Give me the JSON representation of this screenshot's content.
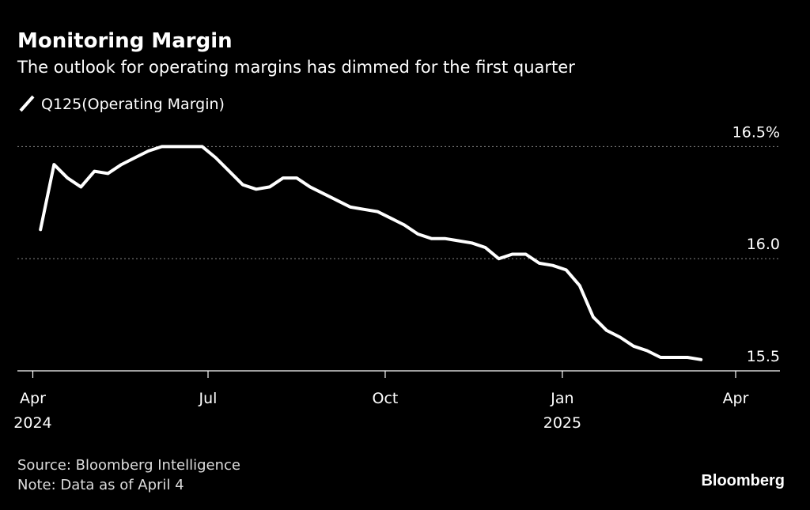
{
  "chart_data": {
    "type": "line",
    "title": "Monitoring Margin",
    "subtitle": "The outlook for operating margins has dimmed for the first quarter",
    "x": [
      "2024-04-05",
      "2024-04-12",
      "2024-04-19",
      "2024-04-26",
      "2024-05-03",
      "2024-05-10",
      "2024-05-17",
      "2024-05-24",
      "2024-05-31",
      "2024-06-07",
      "2024-06-14",
      "2024-06-21",
      "2024-06-28",
      "2024-07-05",
      "2024-07-12",
      "2024-07-19",
      "2024-07-26",
      "2024-08-02",
      "2024-08-09",
      "2024-08-16",
      "2024-08-23",
      "2024-08-30",
      "2024-09-06",
      "2024-09-13",
      "2024-09-20",
      "2024-09-27",
      "2024-10-04",
      "2024-10-11",
      "2024-10-18",
      "2024-10-25",
      "2024-11-01",
      "2024-11-08",
      "2024-11-15",
      "2024-11-22",
      "2024-11-29",
      "2024-12-06",
      "2024-12-13",
      "2024-12-20",
      "2024-12-27",
      "2025-01-03",
      "2025-01-10",
      "2025-01-17",
      "2025-01-24",
      "2025-01-31",
      "2025-02-07",
      "2025-02-14",
      "2025-02-21",
      "2025-02-28",
      "2025-03-07",
      "2025-03-14"
    ],
    "series": [
      {
        "name": "Q125(Operating Margin)",
        "color": "#ffffff",
        "values": [
          16.13,
          16.42,
          16.36,
          16.32,
          16.39,
          16.38,
          16.42,
          16.45,
          16.48,
          16.5,
          16.5,
          16.5,
          16.5,
          16.45,
          16.39,
          16.33,
          16.31,
          16.32,
          16.36,
          16.36,
          16.32,
          16.29,
          16.26,
          16.23,
          16.22,
          16.21,
          16.18,
          16.15,
          16.11,
          16.09,
          16.09,
          16.08,
          16.07,
          16.05,
          16.0,
          16.02,
          16.02,
          15.98,
          15.97,
          15.95,
          15.88,
          15.74,
          15.68,
          15.65,
          15.61,
          15.59,
          15.56,
          15.56,
          15.56,
          15.55
        ]
      }
    ],
    "xlim": [
      "2024-03-24",
      "2025-04-24"
    ],
    "xticks": [
      {
        "value": "2024-04-01",
        "label": "Apr"
      },
      {
        "value": "2024-07-01",
        "label": "Jul"
      },
      {
        "value": "2024-10-01",
        "label": "Oct"
      },
      {
        "value": "2025-01-01",
        "label": "Jan"
      },
      {
        "value": "2025-04-01",
        "label": "Apr"
      }
    ],
    "xtick_years": [
      {
        "value": "2024-04-01",
        "label": "2024"
      },
      {
        "value": "2025-01-01",
        "label": "2025"
      }
    ],
    "ylim": [
      15.5,
      16.6
    ],
    "yticks": [
      15.5,
      {
        "value": 16,
        "label": "16.0"
      },
      {
        "value": 16.5,
        "label": "16.5%"
      }
    ],
    "grid": true,
    "source": "Source: Bloomberg Intelligence",
    "note": "Note: Data as of April 4",
    "brand": "Bloomberg"
  }
}
